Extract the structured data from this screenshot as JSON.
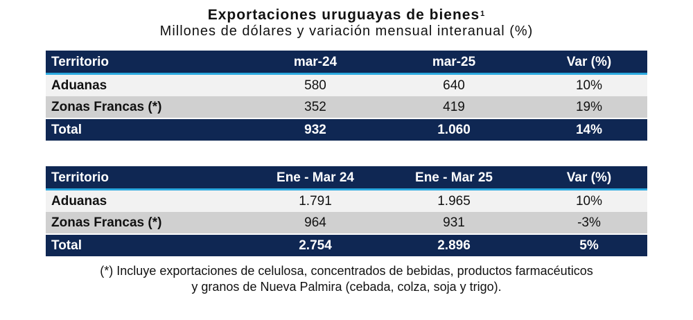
{
  "title": "Exportaciones uruguayas de bienes",
  "title_sup": "1",
  "subtitle": "Millones de dólares y variación mensual interanual (%)",
  "table1": {
    "headers": [
      "Territorio",
      "mar-24",
      "mar-25",
      "Var (%)"
    ],
    "rows": [
      [
        "Aduanas",
        "580",
        "640",
        "10%"
      ],
      [
        "Zonas Francas (*)",
        "352",
        "419",
        "19%"
      ]
    ],
    "total": [
      "Total",
      "932",
      "1.060",
      "14%"
    ]
  },
  "table2": {
    "headers": [
      "Territorio",
      "Ene - Mar 24",
      "Ene - Mar 25",
      "Var (%)"
    ],
    "rows": [
      [
        "Aduanas",
        "1.791",
        "1.965",
        "10%"
      ],
      [
        "Zonas Francas (*)",
        "964",
        "931",
        "-3%"
      ]
    ],
    "total": [
      "Total",
      "2.754",
      "2.896",
      "5%"
    ]
  },
  "footnote": {
    "line1": "(*) Incluye exportaciones de celulosa, concentrados de bebidas, productos farmacéuticos",
    "line2": "y granos de Nueva Palmira (cebada, colza, soja y trigo)."
  },
  "colors": {
    "header_bg": "#0f2753",
    "accent_line": "#2aa9df",
    "row_light": "#f2f2f2",
    "row_dark": "#d0d0d0"
  }
}
